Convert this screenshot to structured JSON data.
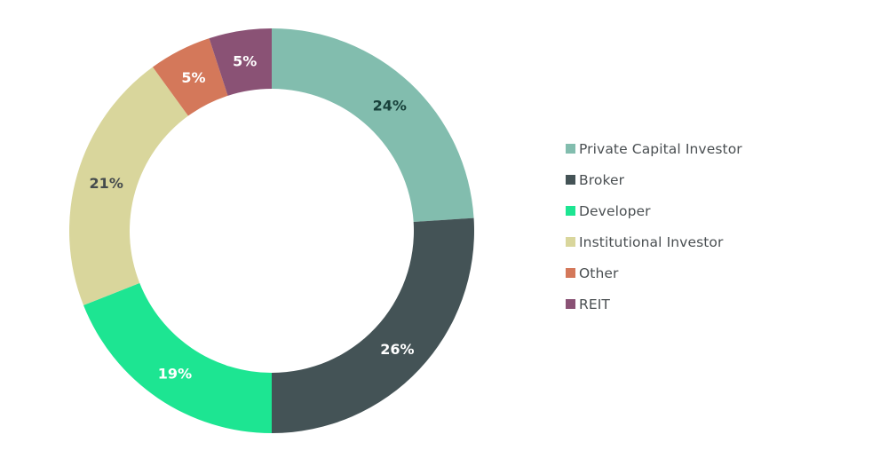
{
  "chart_data": {
    "type": "pie",
    "variant": "donut",
    "title": "",
    "categories": [
      "Private Capital Investor",
      "Broker",
      "Developer",
      "Institutional Investor",
      "Other",
      "REIT"
    ],
    "values": [
      24,
      26,
      19,
      21,
      5,
      5
    ],
    "labels": [
      "24%",
      "26%",
      "19%",
      "21%",
      "5%",
      "5%"
    ],
    "colors": [
      "#82bdae",
      "#445356",
      "#1de592",
      "#d9d69c",
      "#d4785a",
      "#8a5275"
    ],
    "label_colors": [
      "#17403a",
      "#ffffff",
      "#ffffff",
      "#454b4d",
      "#ffffff",
      "#ffffff"
    ],
    "start_angle_deg": 0,
    "direction": "clockwise",
    "legend_position": "right"
  },
  "legend": {
    "items": [
      {
        "label": "Private Capital Investor",
        "color": "#82bdae"
      },
      {
        "label": "Broker",
        "color": "#445356"
      },
      {
        "label": "Developer",
        "color": "#1de592"
      },
      {
        "label": "Institutional Investor",
        "color": "#d9d69c"
      },
      {
        "label": "Other",
        "color": "#d4785a"
      },
      {
        "label": "REIT",
        "color": "#8a5275"
      }
    ]
  }
}
